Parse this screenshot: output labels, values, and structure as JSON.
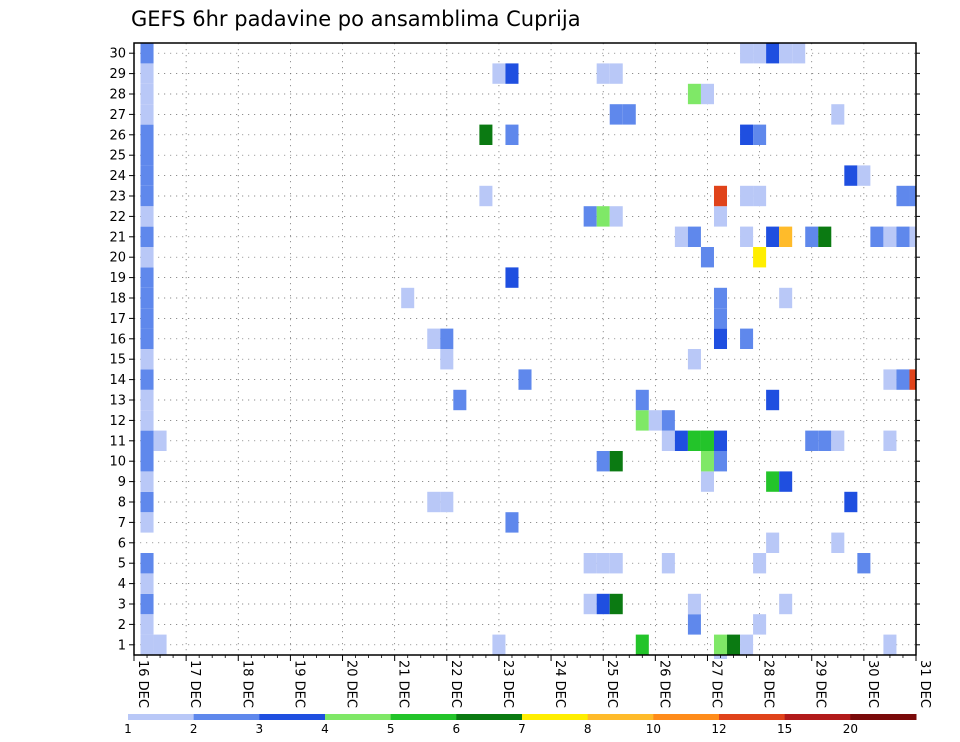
{
  "chart_data": {
    "type": "heatmap",
    "title": "GEFS 6hr padavine po ansamblima Cuprija",
    "xlabel": "",
    "ylabel": "",
    "grid": true,
    "y_ticks": [
      "1",
      "2",
      "3",
      "4",
      "5",
      "6",
      "7",
      "8",
      "9",
      "10",
      "11",
      "12",
      "13",
      "14",
      "15",
      "16",
      "17",
      "18",
      "19",
      "20",
      "21",
      "22",
      "23",
      "24",
      "25",
      "26",
      "27",
      "28",
      "29",
      "30"
    ],
    "x_ticks": [
      "16 DEC",
      "17 DEC",
      "18 DEC",
      "19 DEC",
      "20 DEC",
      "21 DEC",
      "22 DEC",
      "23 DEC",
      "24 DEC",
      "25 DEC",
      "26 DEC",
      "27 DEC",
      "28 DEC",
      "29 DEC",
      "30 DEC",
      "31 DEC"
    ],
    "x_range": [
      "16 DEC 00Z",
      "31 DEC 00Z"
    ],
    "x_step_hours": 6,
    "y_range": [
      1,
      30
    ],
    "colorbar": {
      "levels": [
        "1",
        "2",
        "3",
        "4",
        "5",
        "6",
        "7",
        "8",
        "10",
        "12",
        "15",
        "20"
      ],
      "colors": [
        "#b9c8f7",
        "#5f88ec",
        "#1f4fe0",
        "#7fe867",
        "#23c42a",
        "#0b7a12",
        "#ffee00",
        "#ffbb2a",
        "#ff8c1a",
        "#e0431a",
        "#b21a1a",
        "#7a0a0a"
      ]
    },
    "cells": [
      {
        "t": "16 DEC 06Z",
        "m": 1,
        "v": 1.5
      },
      {
        "t": "16 DEC 06Z",
        "m": 2,
        "v": 1.5
      },
      {
        "t": "16 DEC 06Z",
        "m": 3,
        "v": 2.5
      },
      {
        "t": "16 DEC 06Z",
        "m": 4,
        "v": 1.5
      },
      {
        "t": "16 DEC 06Z",
        "m": 5,
        "v": 2.5
      },
      {
        "t": "16 DEC 06Z",
        "m": 7,
        "v": 1.5
      },
      {
        "t": "16 DEC 06Z",
        "m": 8,
        "v": 2.5
      },
      {
        "t": "16 DEC 06Z",
        "m": 9,
        "v": 1.5
      },
      {
        "t": "16 DEC 06Z",
        "m": 10,
        "v": 2.5
      },
      {
        "t": "16 DEC 06Z",
        "m": 11,
        "v": 2.5
      },
      {
        "t": "16 DEC 06Z",
        "m": 12,
        "v": 1.5
      },
      {
        "t": "16 DEC 06Z",
        "m": 13,
        "v": 1.5
      },
      {
        "t": "16 DEC 06Z",
        "m": 14,
        "v": 2.5
      },
      {
        "t": "16 DEC 06Z",
        "m": 15,
        "v": 1.5
      },
      {
        "t": "16 DEC 06Z",
        "m": 16,
        "v": 2.5
      },
      {
        "t": "16 DEC 06Z",
        "m": 17,
        "v": 2.5
      },
      {
        "t": "16 DEC 06Z",
        "m": 18,
        "v": 2.5
      },
      {
        "t": "16 DEC 06Z",
        "m": 19,
        "v": 2.5
      },
      {
        "t": "16 DEC 06Z",
        "m": 20,
        "v": 1.5
      },
      {
        "t": "16 DEC 06Z",
        "m": 21,
        "v": 2.5
      },
      {
        "t": "16 DEC 06Z",
        "m": 22,
        "v": 1.5
      },
      {
        "t": "16 DEC 06Z",
        "m": 23,
        "v": 2.5
      },
      {
        "t": "16 DEC 06Z",
        "m": 24,
        "v": 2.5
      },
      {
        "t": "16 DEC 06Z",
        "m": 25,
        "v": 2.5
      },
      {
        "t": "16 DEC 06Z",
        "m": 26,
        "v": 2.5
      },
      {
        "t": "16 DEC 06Z",
        "m": 27,
        "v": 1.5
      },
      {
        "t": "16 DEC 06Z",
        "m": 28,
        "v": 1.5
      },
      {
        "t": "16 DEC 06Z",
        "m": 29,
        "v": 1.5
      },
      {
        "t": "16 DEC 06Z",
        "m": 30,
        "v": 2.5
      },
      {
        "t": "16 DEC 12Z",
        "m": 1,
        "v": 1.5
      },
      {
        "t": "16 DEC 12Z",
        "m": 11,
        "v": 1.5
      },
      {
        "t": "21 DEC 06Z",
        "m": 18,
        "v": 1.5
      },
      {
        "t": "21 DEC 18Z",
        "m": 8,
        "v": 1.5
      },
      {
        "t": "21 DEC 18Z",
        "m": 16,
        "v": 1.5
      },
      {
        "t": "22 DEC 00Z",
        "m": 8,
        "v": 1.5
      },
      {
        "t": "22 DEC 00Z",
        "m": 15,
        "v": 1.5
      },
      {
        "t": "22 DEC 00Z",
        "m": 16,
        "v": 2.5
      },
      {
        "t": "22 DEC 06Z",
        "m": 13,
        "v": 2.5
      },
      {
        "t": "22 DEC 18Z",
        "m": 23,
        "v": 1.5
      },
      {
        "t": "22 DEC 18Z",
        "m": 26,
        "v": 6.5
      },
      {
        "t": "23 DEC 00Z",
        "m": 1,
        "v": 1.5
      },
      {
        "t": "23 DEC 00Z",
        "m": 29,
        "v": 1.5
      },
      {
        "t": "23 DEC 06Z",
        "m": 7,
        "v": 2.5
      },
      {
        "t": "23 DEC 06Z",
        "m": 19,
        "v": 3.5
      },
      {
        "t": "23 DEC 06Z",
        "m": 26,
        "v": 2.5
      },
      {
        "t": "23 DEC 06Z",
        "m": 29,
        "v": 3.5
      },
      {
        "t": "23 DEC 12Z",
        "m": 14,
        "v": 2.5
      },
      {
        "t": "24 DEC 18Z",
        "m": 3,
        "v": 1.5
      },
      {
        "t": "24 DEC 18Z",
        "m": 5,
        "v": 1.5
      },
      {
        "t": "24 DEC 18Z",
        "m": 22,
        "v": 2.5
      },
      {
        "t": "25 DEC 00Z",
        "m": 3,
        "v": 3.5
      },
      {
        "t": "25 DEC 00Z",
        "m": 5,
        "v": 1.5
      },
      {
        "t": "25 DEC 00Z",
        "m": 10,
        "v": 2.5
      },
      {
        "t": "25 DEC 00Z",
        "m": 22,
        "v": 4.5
      },
      {
        "t": "25 DEC 00Z",
        "m": 29,
        "v": 1.5
      },
      {
        "t": "25 DEC 06Z",
        "m": 3,
        "v": 6.5
      },
      {
        "t": "25 DEC 06Z",
        "m": 5,
        "v": 1.5
      },
      {
        "t": "25 DEC 06Z",
        "m": 10,
        "v": 6.5
      },
      {
        "t": "25 DEC 06Z",
        "m": 22,
        "v": 1.5
      },
      {
        "t": "25 DEC 06Z",
        "m": 27,
        "v": 2.5
      },
      {
        "t": "25 DEC 06Z",
        "m": 29,
        "v": 1.5
      },
      {
        "t": "25 DEC 12Z",
        "m": 27,
        "v": 2.5
      },
      {
        "t": "25 DEC 18Z",
        "m": 1,
        "v": 5.5
      },
      {
        "t": "25 DEC 18Z",
        "m": 12,
        "v": 4.5
      },
      {
        "t": "25 DEC 18Z",
        "m": 13,
        "v": 2.5
      },
      {
        "t": "26 DEC 00Z",
        "m": 12,
        "v": 1.5
      },
      {
        "t": "26 DEC 06Z",
        "m": 5,
        "v": 1.5
      },
      {
        "t": "26 DEC 06Z",
        "m": 11,
        "v": 1.5
      },
      {
        "t": "26 DEC 06Z",
        "m": 12,
        "v": 2.5
      },
      {
        "t": "26 DEC 12Z",
        "m": 11,
        "v": 3.5
      },
      {
        "t": "26 DEC 12Z",
        "m": 21,
        "v": 1.5
      },
      {
        "t": "26 DEC 18Z",
        "m": 2,
        "v": 2.5
      },
      {
        "t": "26 DEC 18Z",
        "m": 3,
        "v": 1.5
      },
      {
        "t": "26 DEC 18Z",
        "m": 11,
        "v": 5.5
      },
      {
        "t": "26 DEC 18Z",
        "m": 15,
        "v": 1.5
      },
      {
        "t": "26 DEC 18Z",
        "m": 21,
        "v": 2.5
      },
      {
        "t": "26 DEC 18Z",
        "m": 28,
        "v": 4.5
      },
      {
        "t": "27 DEC 00Z",
        "m": 9,
        "v": 1.5
      },
      {
        "t": "27 DEC 00Z",
        "m": 10,
        "v": 4.5
      },
      {
        "t": "27 DEC 00Z",
        "m": 11,
        "v": 5.5
      },
      {
        "t": "27 DEC 00Z",
        "m": 20,
        "v": 2.5
      },
      {
        "t": "27 DEC 00Z",
        "m": 28,
        "v": 1.5
      },
      {
        "t": "27 DEC 06Z",
        "m": 0,
        "v": 1.5
      },
      {
        "t": "27 DEC 06Z",
        "m": 1,
        "v": 4.5
      },
      {
        "t": "27 DEC 06Z",
        "m": 10,
        "v": 2.5
      },
      {
        "t": "27 DEC 06Z",
        "m": 11,
        "v": 3.5
      },
      {
        "t": "27 DEC 06Z",
        "m": 16,
        "v": 3.5
      },
      {
        "t": "27 DEC 06Z",
        "m": 17,
        "v": 2.5
      },
      {
        "t": "27 DEC 06Z",
        "m": 18,
        "v": 2.5
      },
      {
        "t": "27 DEC 06Z",
        "m": 22,
        "v": 1.5
      },
      {
        "t": "27 DEC 06Z",
        "m": 23,
        "v": 13
      },
      {
        "t": "27 DEC 12Z",
        "m": 1,
        "v": 6.5
      },
      {
        "t": "27 DEC 18Z",
        "m": 1,
        "v": 1.5
      },
      {
        "t": "27 DEC 18Z",
        "m": 16,
        "v": 2.5
      },
      {
        "t": "27 DEC 18Z",
        "m": 21,
        "v": 1.5
      },
      {
        "t": "27 DEC 18Z",
        "m": 23,
        "v": 1.5
      },
      {
        "t": "27 DEC 18Z",
        "m": 26,
        "v": 3.5
      },
      {
        "t": "27 DEC 18Z",
        "m": 30,
        "v": 1.5
      },
      {
        "t": "28 DEC 00Z",
        "m": 2,
        "v": 1.5
      },
      {
        "t": "28 DEC 00Z",
        "m": 5,
        "v": 1.5
      },
      {
        "t": "28 DEC 00Z",
        "m": 20,
        "v": 7.5
      },
      {
        "t": "28 DEC 00Z",
        "m": 23,
        "v": 1.5
      },
      {
        "t": "28 DEC 00Z",
        "m": 26,
        "v": 2.5
      },
      {
        "t": "28 DEC 00Z",
        "m": 30,
        "v": 1.5
      },
      {
        "t": "28 DEC 06Z",
        "m": 6,
        "v": 1.5
      },
      {
        "t": "28 DEC 06Z",
        "m": 9,
        "v": 5.5
      },
      {
        "t": "28 DEC 06Z",
        "m": 13,
        "v": 3.5
      },
      {
        "t": "28 DEC 06Z",
        "m": 21,
        "v": 3.5
      },
      {
        "t": "28 DEC 06Z",
        "m": 30,
        "v": 3.5
      },
      {
        "t": "28 DEC 12Z",
        "m": 3,
        "v": 1.5
      },
      {
        "t": "28 DEC 12Z",
        "m": 9,
        "v": 3.5
      },
      {
        "t": "28 DEC 12Z",
        "m": 18,
        "v": 1.5
      },
      {
        "t": "28 DEC 12Z",
        "m": 21,
        "v": 9
      },
      {
        "t": "28 DEC 12Z",
        "m": 30,
        "v": 1.5
      },
      {
        "t": "28 DEC 18Z",
        "m": 30,
        "v": 1.5
      },
      {
        "t": "29 DEC 00Z",
        "m": 11,
        "v": 2.5
      },
      {
        "t": "29 DEC 00Z",
        "m": 21,
        "v": 2.5
      },
      {
        "t": "29 DEC 06Z",
        "m": 11,
        "v": 2.5
      },
      {
        "t": "29 DEC 06Z",
        "m": 21,
        "v": 6.5
      },
      {
        "t": "29 DEC 12Z",
        "m": 6,
        "v": 1.5
      },
      {
        "t": "29 DEC 12Z",
        "m": 11,
        "v": 1.5
      },
      {
        "t": "29 DEC 12Z",
        "m": 27,
        "v": 1.5
      },
      {
        "t": "29 DEC 18Z",
        "m": 8,
        "v": 3.5
      },
      {
        "t": "29 DEC 18Z",
        "m": 24,
        "v": 3.5
      },
      {
        "t": "30 DEC 00Z",
        "m": 5,
        "v": 2.5
      },
      {
        "t": "30 DEC 00Z",
        "m": 24,
        "v": 1.5
      },
      {
        "t": "30 DEC 06Z",
        "m": 21,
        "v": 2.5
      },
      {
        "t": "30 DEC 12Z",
        "m": 1,
        "v": 1.5
      },
      {
        "t": "30 DEC 12Z",
        "m": 11,
        "v": 1.5
      },
      {
        "t": "30 DEC 12Z",
        "m": 14,
        "v": 1.5
      },
      {
        "t": "30 DEC 12Z",
        "m": 21,
        "v": 1.5
      },
      {
        "t": "30 DEC 18Z",
        "m": 14,
        "v": 2.5
      },
      {
        "t": "30 DEC 18Z",
        "m": 21,
        "v": 2.5
      },
      {
        "t": "30 DEC 18Z",
        "m": 23,
        "v": 2.5
      },
      {
        "t": "31 DEC 00Z",
        "m": 14,
        "v": 13
      },
      {
        "t": "31 DEC 00Z",
        "m": 21,
        "v": 1.5
      },
      {
        "t": "31 DEC 00Z",
        "m": 23,
        "v": 2.5
      }
    ]
  }
}
